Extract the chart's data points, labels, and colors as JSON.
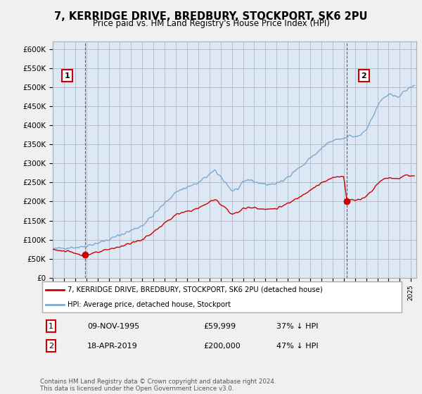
{
  "title": "7, KERRIDGE DRIVE, BREDBURY, STOCKPORT, SK6 2PU",
  "subtitle": "Price paid vs. HM Land Registry's House Price Index (HPI)",
  "background_color": "#f0f0f0",
  "plot_bg_color": "#dce9f5",
  "grid_color": "#bbbbcc",
  "hpi_color": "#7aaad0",
  "price_color": "#cc0000",
  "point1_year": 1995.86,
  "point1_price": 59999,
  "point2_year": 2019.29,
  "point2_price": 200000,
  "legend_entry1": "7, KERRIDGE DRIVE, BREDBURY, STOCKPORT, SK6 2PU (detached house)",
  "legend_entry2": "HPI: Average price, detached house, Stockport",
  "table_row1": [
    "1",
    "09-NOV-1995",
    "£59,999",
    "37% ↓ HPI"
  ],
  "table_row2": [
    "2",
    "18-APR-2019",
    "£200,000",
    "47% ↓ HPI"
  ],
  "footer": "Contains HM Land Registry data © Crown copyright and database right 2024.\nThis data is licensed under the Open Government Licence v3.0.",
  "xmin": 1993.0,
  "xmax": 2025.5,
  "ylim": [
    0,
    620000
  ],
  "yticks": [
    0,
    50000,
    100000,
    150000,
    200000,
    250000,
    300000,
    350000,
    400000,
    450000,
    500000,
    550000,
    600000
  ],
  "ytick_labels": [
    "£0",
    "£50K",
    "£100K",
    "£150K",
    "£200K",
    "£250K",
    "£300K",
    "£350K",
    "£400K",
    "£450K",
    "£500K",
    "£550K",
    "£600K"
  ]
}
